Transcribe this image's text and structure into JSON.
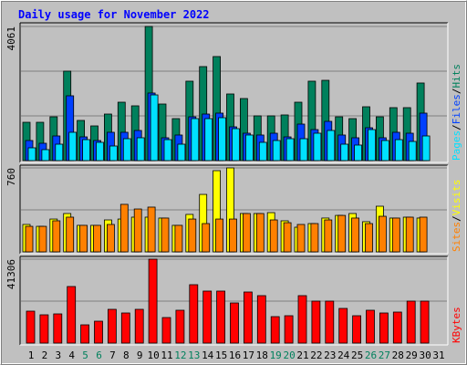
{
  "title": "Daily usage for November 2022",
  "categories": [
    "1",
    "2",
    "3",
    "4",
    "5",
    "6",
    "7",
    "8",
    "9",
    "10",
    "11",
    "12",
    "13",
    "14",
    "15",
    "16",
    "17",
    "18",
    "19",
    "20",
    "21",
    "22",
    "23",
    "24",
    "25",
    "26",
    "27",
    "28",
    "29",
    "30",
    "31"
  ],
  "highlight_indices": [
    4,
    5,
    11,
    12,
    18,
    19,
    25,
    26
  ],
  "highlight_color": "#00805c",
  "legend_separator": "/",
  "chart_data": [
    {
      "type": "bar",
      "ylim": [
        0,
        4061
      ],
      "yticks": [
        4061
      ],
      "grid": true,
      "grid_divisions": 3,
      "series": [
        {
          "name": "Hits",
          "color": "#00805c",
          "values": [
            1160,
            1160,
            1326,
            2708,
            1216,
            1050,
            1409,
            1768,
            1658,
            4061,
            1713,
            1271,
            2404,
            2846,
            3150,
            2017,
            1879,
            1354,
            1354,
            1382,
            1768,
            2404,
            2431,
            1326,
            1271,
            1630,
            1326,
            1603,
            1603,
            2349,
            null
          ]
        },
        {
          "name": "Files",
          "color": "#0040ff",
          "values": [
            608,
            525,
            746,
            1962,
            718,
            608,
            857,
            857,
            912,
            2045,
            691,
            774,
            1326,
            1409,
            1437,
            1022,
            829,
            774,
            829,
            718,
            1105,
            939,
            1188,
            774,
            691,
            995,
            691,
            857,
            829,
            1437,
            null
          ]
        },
        {
          "name": "Pages",
          "color": "#00e0ff",
          "values": [
            387,
            332,
            497,
            857,
            635,
            553,
            442,
            663,
            691,
            1989,
            635,
            497,
            1271,
            1271,
            1299,
            967,
            774,
            553,
            608,
            663,
            663,
            829,
            912,
            497,
            470,
            939,
            608,
            635,
            580,
            746,
            null
          ]
        }
      ]
    },
    {
      "type": "bar",
      "ylim": [
        0,
        760
      ],
      "yticks": [
        760
      ],
      "grid": true,
      "grid_divisions": 2,
      "series": [
        {
          "name": "Visits",
          "color": "#ffff00",
          "values": [
            248,
            231,
            297,
            347,
            240,
            240,
            289,
            297,
            314,
            314,
            306,
            240,
            339,
            520,
            735,
            760,
            347,
            347,
            355,
            281,
            223,
            256,
            306,
            330,
            347,
            273,
            413,
            306,
            314,
            306,
            null
          ]
        },
        {
          "name": "Sites",
          "color": "#ff8000",
          "values": [
            231,
            231,
            281,
            314,
            240,
            240,
            248,
            430,
            388,
            405,
            306,
            240,
            297,
            256,
            297,
            297,
            347,
            347,
            289,
            264,
            248,
            256,
            289,
            330,
            306,
            256,
            322,
            306,
            314,
            314,
            null
          ]
        }
      ]
    },
    {
      "type": "bar",
      "ylim": [
        0,
        41306
      ],
      "yticks": [
        41306
      ],
      "grid": true,
      "grid_divisions": 2,
      "series": [
        {
          "name": "KBytes",
          "color": "#ff0000",
          "values": [
            15715,
            13919,
            14368,
            27838,
            8980,
            10776,
            16613,
            14817,
            16613,
            41306,
            12572,
            16164,
            28736,
            25593,
            25593,
            19756,
            25144,
            23348,
            13021,
            13470,
            23348,
            20654,
            20654,
            17062,
            13470,
            16164,
            14817,
            15266,
            20654,
            20654,
            null
          ]
        }
      ]
    }
  ]
}
